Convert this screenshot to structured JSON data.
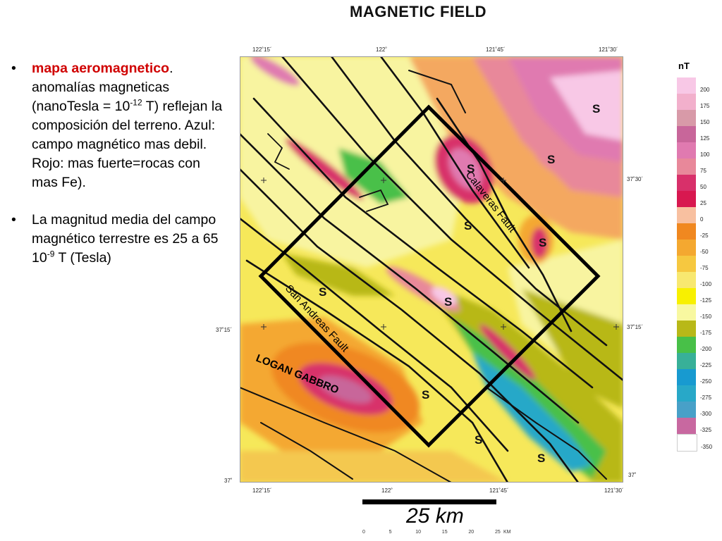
{
  "title": "MAGNETIC FIELD",
  "bullets": [
    {
      "highlight": "mapa aeromagnetico",
      "parts": [
        ". anomalías magneticas (nanoTesla = 10",
        "-12",
        " T) reflejan la composición del terreno. Azul: campo magnético mas debil. Rojo: mas fuerte=rocas con mas Fe)."
      ]
    },
    {
      "parts": [
        "La magnitud media del campo magnético terrestre es 25 a 65 10",
        "-9",
        " T (Tesla)"
      ]
    }
  ],
  "map": {
    "top_ticks": [
      "122˚15´",
      "122˚",
      "121˚45´",
      "121˚30´"
    ],
    "bottom_ticks": [
      "122˚15´",
      "122˚",
      "121˚45´",
      "121˚30´"
    ],
    "left_ticks": [
      "37˚15´",
      "37˚"
    ],
    "right_ticks": [
      "37˚30´",
      "37˚15´",
      "37˚"
    ],
    "labels": {
      "calaveras": "Calaveras Fault",
      "san_andreas": "San Andreas Fault",
      "logan": "LOGAN GABBRO",
      "s": "S",
      "s3": "S"
    }
  },
  "legend": {
    "unit": "nT",
    "entries": [
      {
        "label": "200",
        "color": "#f8c8e6"
      },
      {
        "label": "175",
        "color": "#f2b0cc"
      },
      {
        "label": "150",
        "color": "#d89aa8"
      },
      {
        "label": "125",
        "color": "#c8669a"
      },
      {
        "label": "100",
        "color": "#e07ab0"
      },
      {
        "label": "75",
        "color": "#e8889a"
      },
      {
        "label": "50",
        "color": "#d8306a"
      },
      {
        "label": "25",
        "color": "#d81850"
      },
      {
        "label": "0",
        "color": "#f8c0a0"
      },
      {
        "label": "-25",
        "color": "#f08820"
      },
      {
        "label": "-50",
        "color": "#f4a830"
      },
      {
        "label": "-75",
        "color": "#f6c840"
      },
      {
        "label": "-100",
        "color": "#f8e870"
      },
      {
        "label": "-125",
        "color": "#f8f000"
      },
      {
        "label": "-150",
        "color": "#f8f8a0"
      },
      {
        "label": "-175",
        "color": "#b8b818"
      },
      {
        "label": "-200",
        "color": "#48c048"
      },
      {
        "label": "-225",
        "color": "#38b098"
      },
      {
        "label": "-250",
        "color": "#189ad0"
      },
      {
        "label": "-275",
        "color": "#28a8c8"
      },
      {
        "label": "-300",
        "color": "#48a0c8"
      },
      {
        "label": "-325",
        "color": "#c868a0"
      },
      {
        "label": "-350",
        "color": ""
      }
    ]
  },
  "scale": {
    "label": "25 km",
    "ruler_unit": "KM",
    "ruler_ticks": [
      "0",
      "5",
      "10",
      "15",
      "20",
      "25"
    ]
  }
}
